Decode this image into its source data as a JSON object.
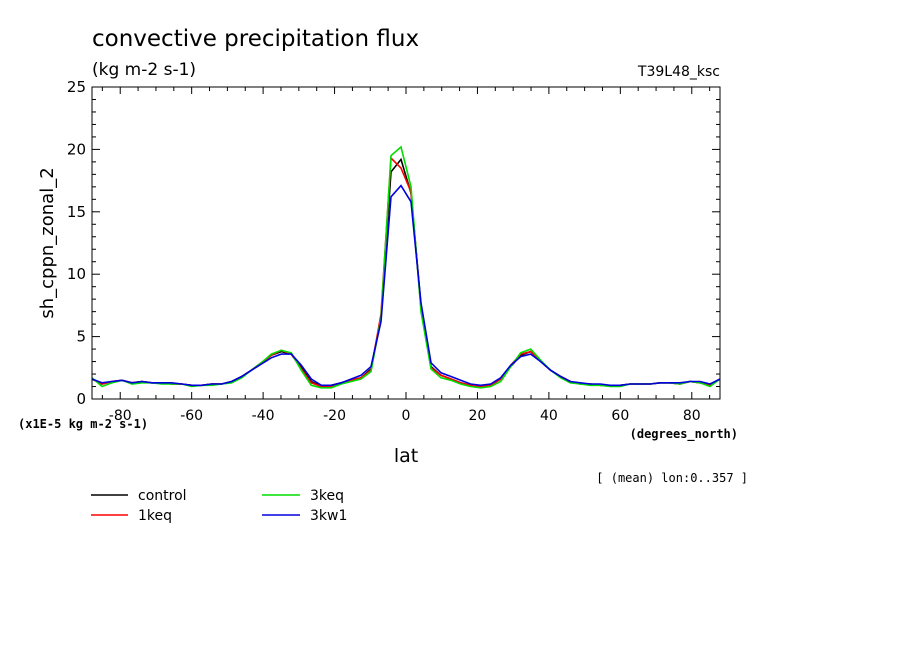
{
  "chart_data": {
    "type": "line",
    "title": "convective precipitation flux",
    "subtitle": "(kg m-2 s-1)",
    "run_label": "T39L48_ksc",
    "ylabel": "sh_cppn_zonal_2",
    "xlabel": "lat",
    "x_units": "(degrees_north)",
    "y_scale_note": "(x1E-5 kg m-2 s-1)",
    "mean_note": "[ (mean) lon:0..357 ]",
    "xlim": [
      -87.9,
      87.9
    ],
    "ylim": [
      0,
      25
    ],
    "x_ticks": [
      -80,
      -60,
      -40,
      -20,
      0,
      20,
      40,
      60,
      80
    ],
    "x_tick_labels": [
      "-80",
      "-60",
      "-40",
      "-20",
      "0",
      "20",
      "40",
      "60",
      "80"
    ],
    "y_ticks": [
      0,
      5,
      10,
      15,
      20,
      25
    ],
    "y_tick_labels": [
      "0",
      "5",
      "10",
      "15",
      "20",
      "25"
    ],
    "x": [
      -87.9,
      -85.1,
      -82.3,
      -79.5,
      -76.7,
      -73.9,
      -71.2,
      -68.4,
      -65.6,
      -62.8,
      -60.0,
      -57.2,
      -54.4,
      -51.6,
      -48.8,
      -46.0,
      -43.3,
      -40.5,
      -37.7,
      -34.9,
      -32.1,
      -29.3,
      -26.5,
      -23.7,
      -20.9,
      -18.1,
      -15.3,
      -12.6,
      -9.8,
      -7.0,
      -4.2,
      -1.4,
      1.4,
      4.2,
      7.0,
      9.8,
      12.6,
      15.3,
      18.1,
      20.9,
      23.7,
      26.5,
      29.3,
      32.1,
      34.9,
      37.7,
      40.5,
      43.3,
      46.0,
      48.8,
      51.6,
      54.4,
      57.2,
      60.0,
      62.8,
      65.6,
      68.4,
      71.2,
      73.9,
      76.7,
      79.5,
      82.3,
      85.1,
      87.9
    ],
    "series": [
      {
        "name": "control",
        "color": "#000000",
        "values": [
          1.6,
          1.2,
          1.4,
          1.5,
          1.3,
          1.4,
          1.3,
          1.3,
          1.2,
          1.2,
          1.1,
          1.1,
          1.2,
          1.2,
          1.4,
          1.8,
          2.3,
          2.9,
          3.5,
          3.8,
          3.6,
          2.5,
          1.4,
          1.0,
          1.1,
          1.3,
          1.5,
          1.7,
          2.4,
          6.5,
          18.2,
          19.2,
          16.5,
          7.5,
          2.6,
          1.9,
          1.6,
          1.3,
          1.1,
          1.0,
          1.1,
          1.6,
          2.6,
          3.5,
          3.8,
          3.0,
          2.3,
          1.8,
          1.4,
          1.2,
          1.2,
          1.1,
          1.1,
          1.1,
          1.2,
          1.2,
          1.2,
          1.3,
          1.3,
          1.2,
          1.4,
          1.3,
          1.1,
          1.6
        ]
      },
      {
        "name": "1keq",
        "color": "#ff0000",
        "values": [
          1.6,
          1.2,
          1.4,
          1.5,
          1.3,
          1.4,
          1.3,
          1.3,
          1.2,
          1.2,
          1.1,
          1.1,
          1.2,
          1.2,
          1.4,
          1.8,
          2.3,
          2.9,
          3.5,
          3.9,
          3.6,
          2.4,
          1.3,
          1.0,
          1.0,
          1.3,
          1.5,
          1.7,
          2.3,
          6.8,
          19.3,
          18.5,
          16.6,
          7.3,
          2.5,
          1.9,
          1.6,
          1.3,
          1.1,
          1.0,
          1.1,
          1.6,
          2.7,
          3.6,
          3.8,
          3.0,
          2.3,
          1.8,
          1.4,
          1.2,
          1.2,
          1.1,
          1.1,
          1.1,
          1.2,
          1.2,
          1.2,
          1.3,
          1.3,
          1.2,
          1.4,
          1.3,
          1.1,
          1.6
        ]
      },
      {
        "name": "3keq",
        "color": "#00dd00",
        "values": [
          1.7,
          1.0,
          1.3,
          1.5,
          1.2,
          1.3,
          1.3,
          1.2,
          1.2,
          1.2,
          1.0,
          1.1,
          1.1,
          1.2,
          1.3,
          1.7,
          2.3,
          2.9,
          3.6,
          3.9,
          3.7,
          2.3,
          1.1,
          0.9,
          0.9,
          1.2,
          1.4,
          1.6,
          2.2,
          6.5,
          19.5,
          20.2,
          17.0,
          7.0,
          2.4,
          1.7,
          1.5,
          1.2,
          1.0,
          0.9,
          1.0,
          1.4,
          2.6,
          3.7,
          4.0,
          3.1,
          2.3,
          1.7,
          1.3,
          1.2,
          1.1,
          1.1,
          1.0,
          1.0,
          1.2,
          1.2,
          1.2,
          1.3,
          1.3,
          1.2,
          1.4,
          1.3,
          1.0,
          1.6
        ]
      },
      {
        "name": "3kw1",
        "color": "#0000dd",
        "values": [
          1.6,
          1.3,
          1.4,
          1.5,
          1.3,
          1.4,
          1.3,
          1.3,
          1.3,
          1.2,
          1.1,
          1.1,
          1.2,
          1.2,
          1.4,
          1.8,
          2.3,
          2.8,
          3.3,
          3.6,
          3.6,
          2.7,
          1.6,
          1.1,
          1.1,
          1.3,
          1.6,
          1.9,
          2.6,
          6.2,
          16.2,
          17.1,
          15.8,
          7.7,
          2.9,
          2.1,
          1.8,
          1.5,
          1.2,
          1.1,
          1.2,
          1.7,
          2.7,
          3.4,
          3.6,
          3.0,
          2.3,
          1.8,
          1.4,
          1.3,
          1.2,
          1.2,
          1.1,
          1.1,
          1.2,
          1.2,
          1.2,
          1.3,
          1.3,
          1.3,
          1.4,
          1.4,
          1.2,
          1.6
        ]
      }
    ]
  }
}
